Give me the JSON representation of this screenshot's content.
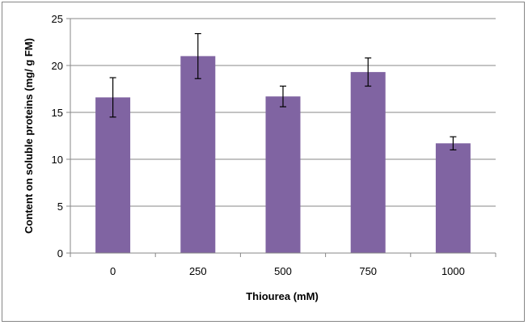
{
  "chart_data": {
    "type": "bar",
    "title": "",
    "xlabel": "Thiourea (mM)",
    "ylabel": "Content on soluble proteins (mg/ g FM)",
    "categories": [
      "0",
      "250",
      "500",
      "750",
      "1000"
    ],
    "values": [
      16.6,
      21.0,
      16.7,
      19.3,
      11.7
    ],
    "error_bars": [
      2.1,
      2.4,
      1.1,
      1.5,
      0.7
    ],
    "ylim": [
      0,
      25
    ],
    "yticks": [
      "0",
      "5",
      "10",
      "15",
      "20",
      "25"
    ],
    "grid": true,
    "legend": "none",
    "bar_color": "#8064a2"
  }
}
